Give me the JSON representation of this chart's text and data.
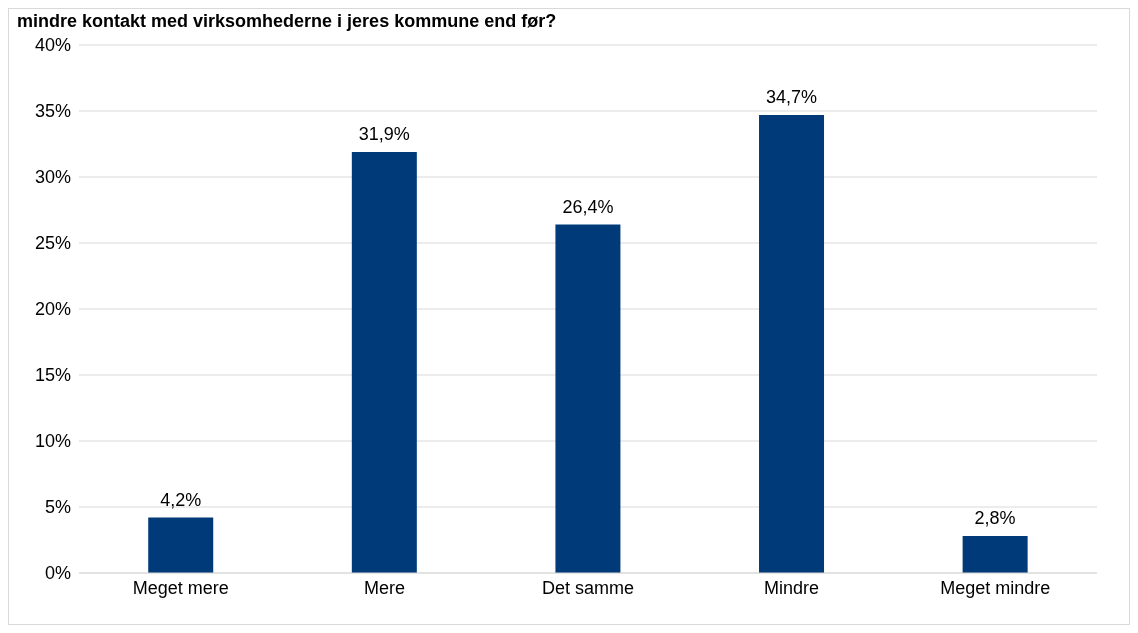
{
  "chart_data": {
    "type": "bar",
    "title": "mindre kontakt med virksomhederne i jeres kommune end før?",
    "categories": [
      "Meget mere",
      "Mere",
      "Det samme",
      "Mindre",
      "Meget mindre"
    ],
    "values": [
      4.2,
      31.9,
      26.4,
      34.7,
      2.8
    ],
    "value_labels": [
      "4,2%",
      "31,9%",
      "26,4%",
      "34,7%",
      "2,8%"
    ],
    "color": "#003a78",
    "ylim": [
      0,
      40
    ],
    "yticks": [
      {
        "value": 0,
        "label": "0%"
      },
      {
        "value": 5,
        "label": "5%"
      },
      {
        "value": 10,
        "label": "10%"
      },
      {
        "value": 15,
        "label": "15%"
      },
      {
        "value": 20,
        "label": "20%"
      },
      {
        "value": 25,
        "label": "25%"
      },
      {
        "value": 30,
        "label": "30%"
      },
      {
        "value": 35,
        "label": "35%"
      },
      {
        "value": 40,
        "label": "40%"
      }
    ],
    "grid": "y"
  }
}
